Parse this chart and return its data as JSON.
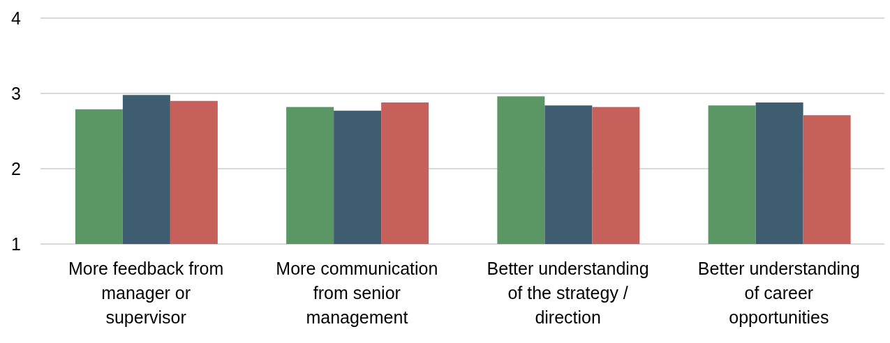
{
  "chart_data": {
    "type": "bar",
    "categories": [
      "More feedback from manager or supervisor",
      "More communication from senior management",
      "Better understanding of the strategy / direction",
      "Better understanding of career opportunities"
    ],
    "series": [
      {
        "color": "#5b9764",
        "values": [
          2.79,
          2.82,
          2.96,
          2.84
        ]
      },
      {
        "color": "#3f5d70",
        "values": [
          2.98,
          2.77,
          2.84,
          2.88
        ]
      },
      {
        "color": "#c5605a",
        "values": [
          2.9,
          2.88,
          2.82,
          2.71
        ]
      }
    ],
    "ylim": [
      1,
      4
    ],
    "yticks": [
      1,
      2,
      3,
      4
    ],
    "grid": "y",
    "legend": false
  }
}
